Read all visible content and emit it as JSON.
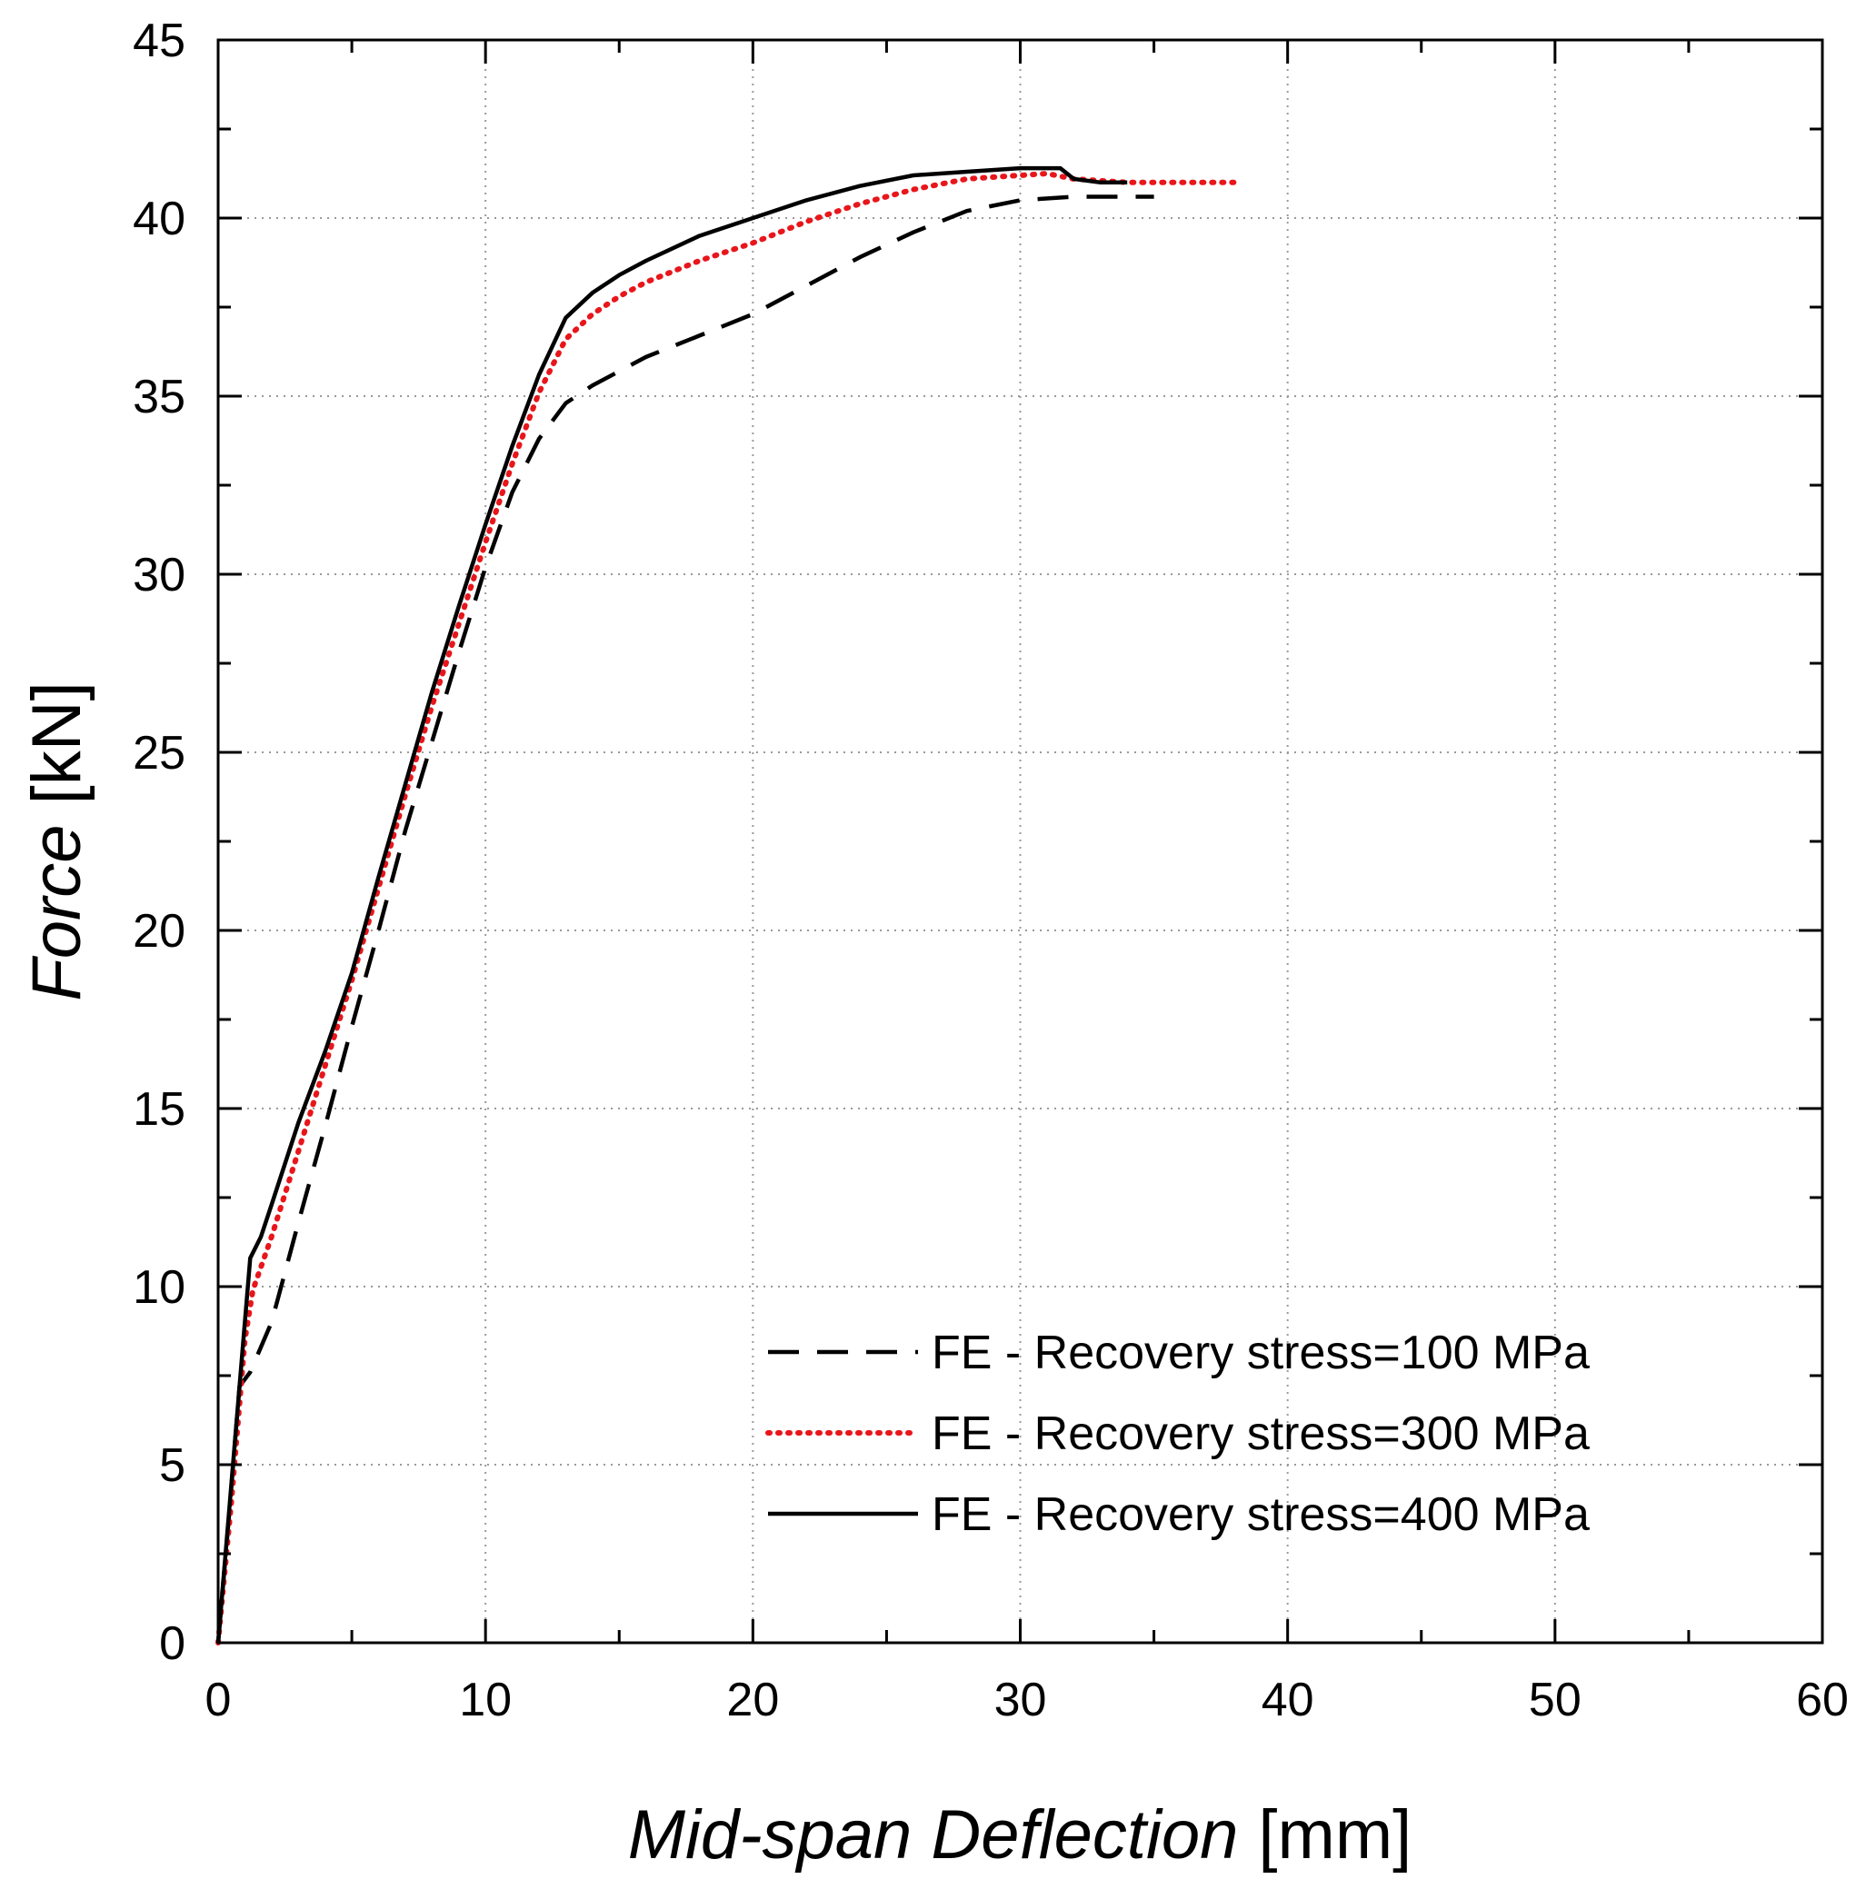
{
  "chart_data": {
    "type": "line",
    "title": "",
    "xlabel": {
      "italic": "Mid-span Deflection",
      "unit": "[mm]"
    },
    "ylabel": {
      "italic": "Force",
      "unit": "[kN]"
    },
    "xlim": [
      0,
      60
    ],
    "ylim": [
      0,
      45
    ],
    "xticks": [
      "0",
      "10",
      "20",
      "30",
      "40",
      "50",
      "60"
    ],
    "yticks": [
      "0",
      "5",
      "10",
      "15",
      "20",
      "25",
      "30",
      "35",
      "40",
      "45"
    ],
    "grid": true,
    "legend_position": "lower-right",
    "series": [
      {
        "name": "FE - Recovery stress=100 MPa",
        "style": "dashed",
        "color": "#000000",
        "points": [
          [
            0,
            0
          ],
          [
            0.4,
            3.5
          ],
          [
            0.8,
            7.2
          ],
          [
            1.2,
            7.6
          ],
          [
            2.0,
            9.0
          ],
          [
            3.0,
            11.8
          ],
          [
            4.0,
            14.5
          ],
          [
            5.0,
            17.3
          ],
          [
            6.0,
            20.0
          ],
          [
            7.0,
            22.8
          ],
          [
            8.0,
            25.3
          ],
          [
            9.0,
            27.8
          ],
          [
            10.0,
            30.2
          ],
          [
            11.0,
            32.3
          ],
          [
            12.0,
            33.8
          ],
          [
            13.0,
            34.8
          ],
          [
            14.0,
            35.3
          ],
          [
            15.0,
            35.7
          ],
          [
            16.0,
            36.1
          ],
          [
            18.0,
            36.7
          ],
          [
            20.0,
            37.3
          ],
          [
            22.0,
            38.1
          ],
          [
            24.0,
            38.9
          ],
          [
            26.0,
            39.6
          ],
          [
            28.0,
            40.2
          ],
          [
            30.0,
            40.5
          ],
          [
            32.0,
            40.6
          ],
          [
            33.0,
            40.6
          ],
          [
            35.0,
            40.6
          ]
        ]
      },
      {
        "name": "FE - Recovery stress=300 MPa",
        "style": "dotted",
        "color": "#e8161b",
        "points": [
          [
            0,
            0
          ],
          [
            0.5,
            4.0
          ],
          [
            1.0,
            8.5
          ],
          [
            1.3,
            9.9
          ],
          [
            2.0,
            11.4
          ],
          [
            3.0,
            13.8
          ],
          [
            4.0,
            16.2
          ],
          [
            5.0,
            18.6
          ],
          [
            6.0,
            21.2
          ],
          [
            7.0,
            23.8
          ],
          [
            8.0,
            26.3
          ],
          [
            9.0,
            28.6
          ],
          [
            10.0,
            30.9
          ],
          [
            11.0,
            33.1
          ],
          [
            12.0,
            35.1
          ],
          [
            13.0,
            36.6
          ],
          [
            14.0,
            37.3
          ],
          [
            15.0,
            37.8
          ],
          [
            16.0,
            38.2
          ],
          [
            18.0,
            38.8
          ],
          [
            20.0,
            39.3
          ],
          [
            22.0,
            39.9
          ],
          [
            24.0,
            40.4
          ],
          [
            26.0,
            40.8
          ],
          [
            28.0,
            41.1
          ],
          [
            30.0,
            41.2
          ],
          [
            31.0,
            41.25
          ],
          [
            32.0,
            41.1
          ],
          [
            34.0,
            41.0
          ],
          [
            36.0,
            41.0
          ],
          [
            38.0,
            41.0
          ]
        ]
      },
      {
        "name": "FE - Recovery stress=400 MPa",
        "style": "solid",
        "color": "#000000",
        "points": [
          [
            0,
            0
          ],
          [
            0.5,
            4.5
          ],
          [
            1.0,
            9.0
          ],
          [
            1.2,
            10.8
          ],
          [
            1.6,
            11.4
          ],
          [
            2.0,
            12.3
          ],
          [
            3.0,
            14.6
          ],
          [
            4.0,
            16.6
          ],
          [
            5.0,
            18.8
          ],
          [
            6.0,
            21.5
          ],
          [
            7.0,
            24.1
          ],
          [
            8.0,
            26.7
          ],
          [
            9.0,
            29.1
          ],
          [
            10.0,
            31.4
          ],
          [
            11.0,
            33.6
          ],
          [
            12.0,
            35.6
          ],
          [
            13.0,
            37.2
          ],
          [
            14.0,
            37.9
          ],
          [
            15.0,
            38.4
          ],
          [
            16.0,
            38.8
          ],
          [
            18.0,
            39.5
          ],
          [
            20.0,
            40.0
          ],
          [
            22.0,
            40.5
          ],
          [
            24.0,
            40.9
          ],
          [
            26.0,
            41.2
          ],
          [
            28.0,
            41.3
          ],
          [
            30.0,
            41.4
          ],
          [
            31.5,
            41.4
          ],
          [
            32.0,
            41.1
          ],
          [
            33.0,
            41.0
          ],
          [
            34.0,
            41.0
          ]
        ]
      }
    ]
  }
}
